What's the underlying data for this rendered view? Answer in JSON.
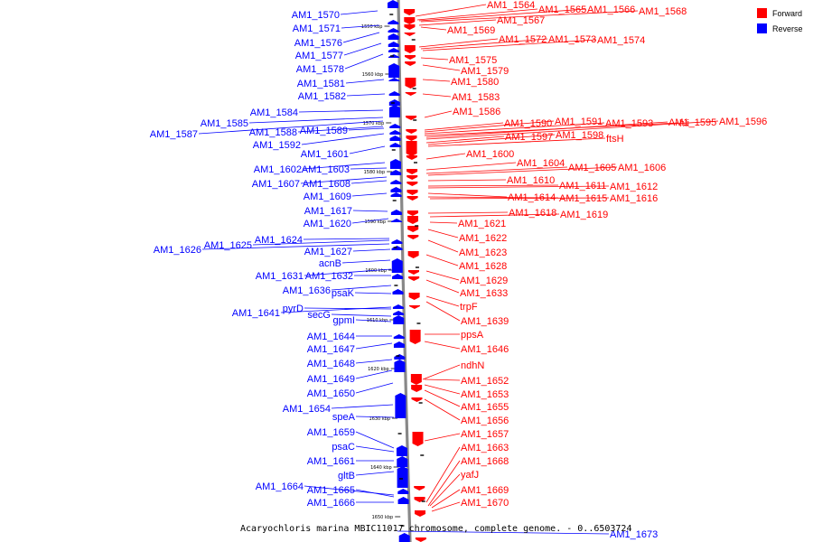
{
  "caption": "Acaryochloris marina MBIC11017 chromosome, complete genome. - 0..6503724",
  "colors": {
    "forward": "#ff0000",
    "reverse": "#0000ff",
    "axis": "#888888"
  },
  "legend": [
    {
      "label": "Forward",
      "color": "#ff0000"
    },
    {
      "label": "Reverse",
      "color": "#0000ff"
    }
  ],
  "ticks": [
    "1550 kbp",
    "1560 kbp",
    "1570 kbp",
    "1580 kbp",
    "1590 kbp",
    "1600 kbp",
    "1610 kbp",
    "1620 kbp",
    "1630 kbp",
    "1640 kbp",
    "1650 kbp"
  ],
  "reverse_labels": [
    "AM1_1570",
    "AM1_1571",
    "AM1_1576",
    "AM1_1577",
    "AM1_1578",
    "AM1_1581",
    "AM1_1582",
    "AM1_1584",
    "AM1_1585",
    "AM1_1587",
    "AM1_1588",
    "AM1_1589",
    "AM1_1592",
    "AM1_1601",
    "AM1_1602",
    "AM1_1603",
    "AM1_1607",
    "AM1_1608",
    "AM1_1609",
    "AM1_1617",
    "AM1_1620",
    "AM1_1624",
    "AM1_1625",
    "AM1_1626",
    "AM1_1627",
    "acnB",
    "AM1_1631",
    "AM1_1632",
    "AM1_1636",
    "psaK",
    "AM1_1641",
    "pyrD",
    "secG",
    "gpmI",
    "AM1_1644",
    "AM1_1647",
    "AM1_1648",
    "AM1_1649",
    "AM1_1650",
    "AM1_1654",
    "speA",
    "AM1_1659",
    "psaC",
    "AM1_1661",
    "gltB",
    "AM1_1664",
    "AM1_1665",
    "AM1_1666",
    "AM1_1673"
  ],
  "forward_labels": [
    "AM1_1564",
    "AM1_1565",
    "AM1_1566",
    "AM1_1568",
    "AM1_1567",
    "AM1_1569",
    "AM1_1572",
    "AM1_1573",
    "AM1_1574",
    "AM1_1575",
    "AM1_1579",
    "AM1_1580",
    "AM1_1583",
    "AM1_1586",
    "AM1_1590",
    "AM1_1591",
    "AM1_1593",
    "hli",
    "AM1_1595",
    "AM1_1596",
    "AM1_1597",
    "AM1_1598",
    "ftsH",
    "AM1_1600",
    "AM1_1604",
    "AM1_1605",
    "AM1_1606",
    "AM1_1610",
    "AM1_1611",
    "AM1_1612",
    "AM1_1614",
    "AM1_1615",
    "AM1_1616",
    "AM1_1618",
    "AM1_1619",
    "AM1_1621",
    "AM1_1622",
    "AM1_1623",
    "AM1_1628",
    "AM1_1629",
    "AM1_1633",
    "trpF",
    "AM1_1639",
    "ppsA",
    "AM1_1646",
    "ndhN",
    "AM1_1652",
    "AM1_1653",
    "AM1_1655",
    "AM1_1656",
    "AM1_1657",
    "AM1_1663",
    "AM1_1668",
    "yafJ",
    "AM1_1669",
    "AM1_1670"
  ]
}
